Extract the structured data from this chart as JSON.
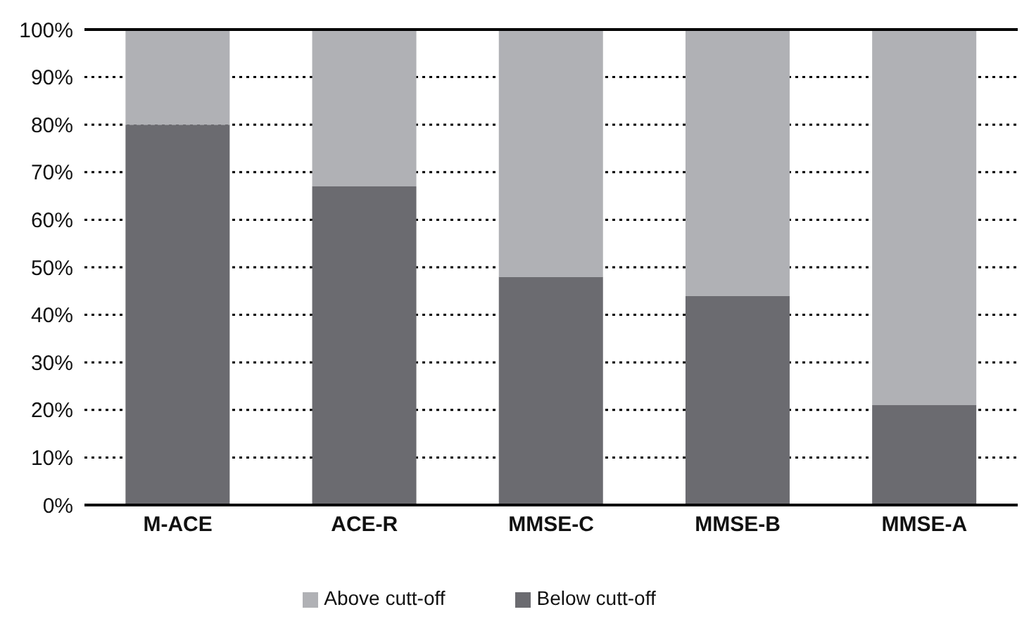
{
  "chart_data": {
    "type": "bar",
    "stacked": true,
    "categories": [
      "M-ACE",
      "ACE-R",
      "MMSE-C",
      "MMSE-B",
      "MMSE-A"
    ],
    "series": [
      {
        "name": "Below cutt-off",
        "color": "#6b6b70",
        "values": [
          80,
          67,
          48,
          44,
          21
        ]
      },
      {
        "name": "Above cutt-off",
        "color": "#b0b1b5",
        "values": [
          20,
          33,
          52,
          56,
          79
        ]
      }
    ],
    "ylim": [
      0,
      100
    ],
    "yticks": [
      {
        "value": 0,
        "label": "0%"
      },
      {
        "value": 10,
        "label": "10%"
      },
      {
        "value": 20,
        "label": "20%"
      },
      {
        "value": 30,
        "label": "30%"
      },
      {
        "value": 40,
        "label": "40%"
      },
      {
        "value": 50,
        "label": "50%"
      },
      {
        "value": 60,
        "label": "60%"
      },
      {
        "value": 70,
        "label": "70%"
      },
      {
        "value": 80,
        "label": "80%"
      },
      {
        "value": 90,
        "label": "90%"
      },
      {
        "value": 100,
        "label": "100%"
      }
    ],
    "grid": "y",
    "legend": "bottom"
  }
}
